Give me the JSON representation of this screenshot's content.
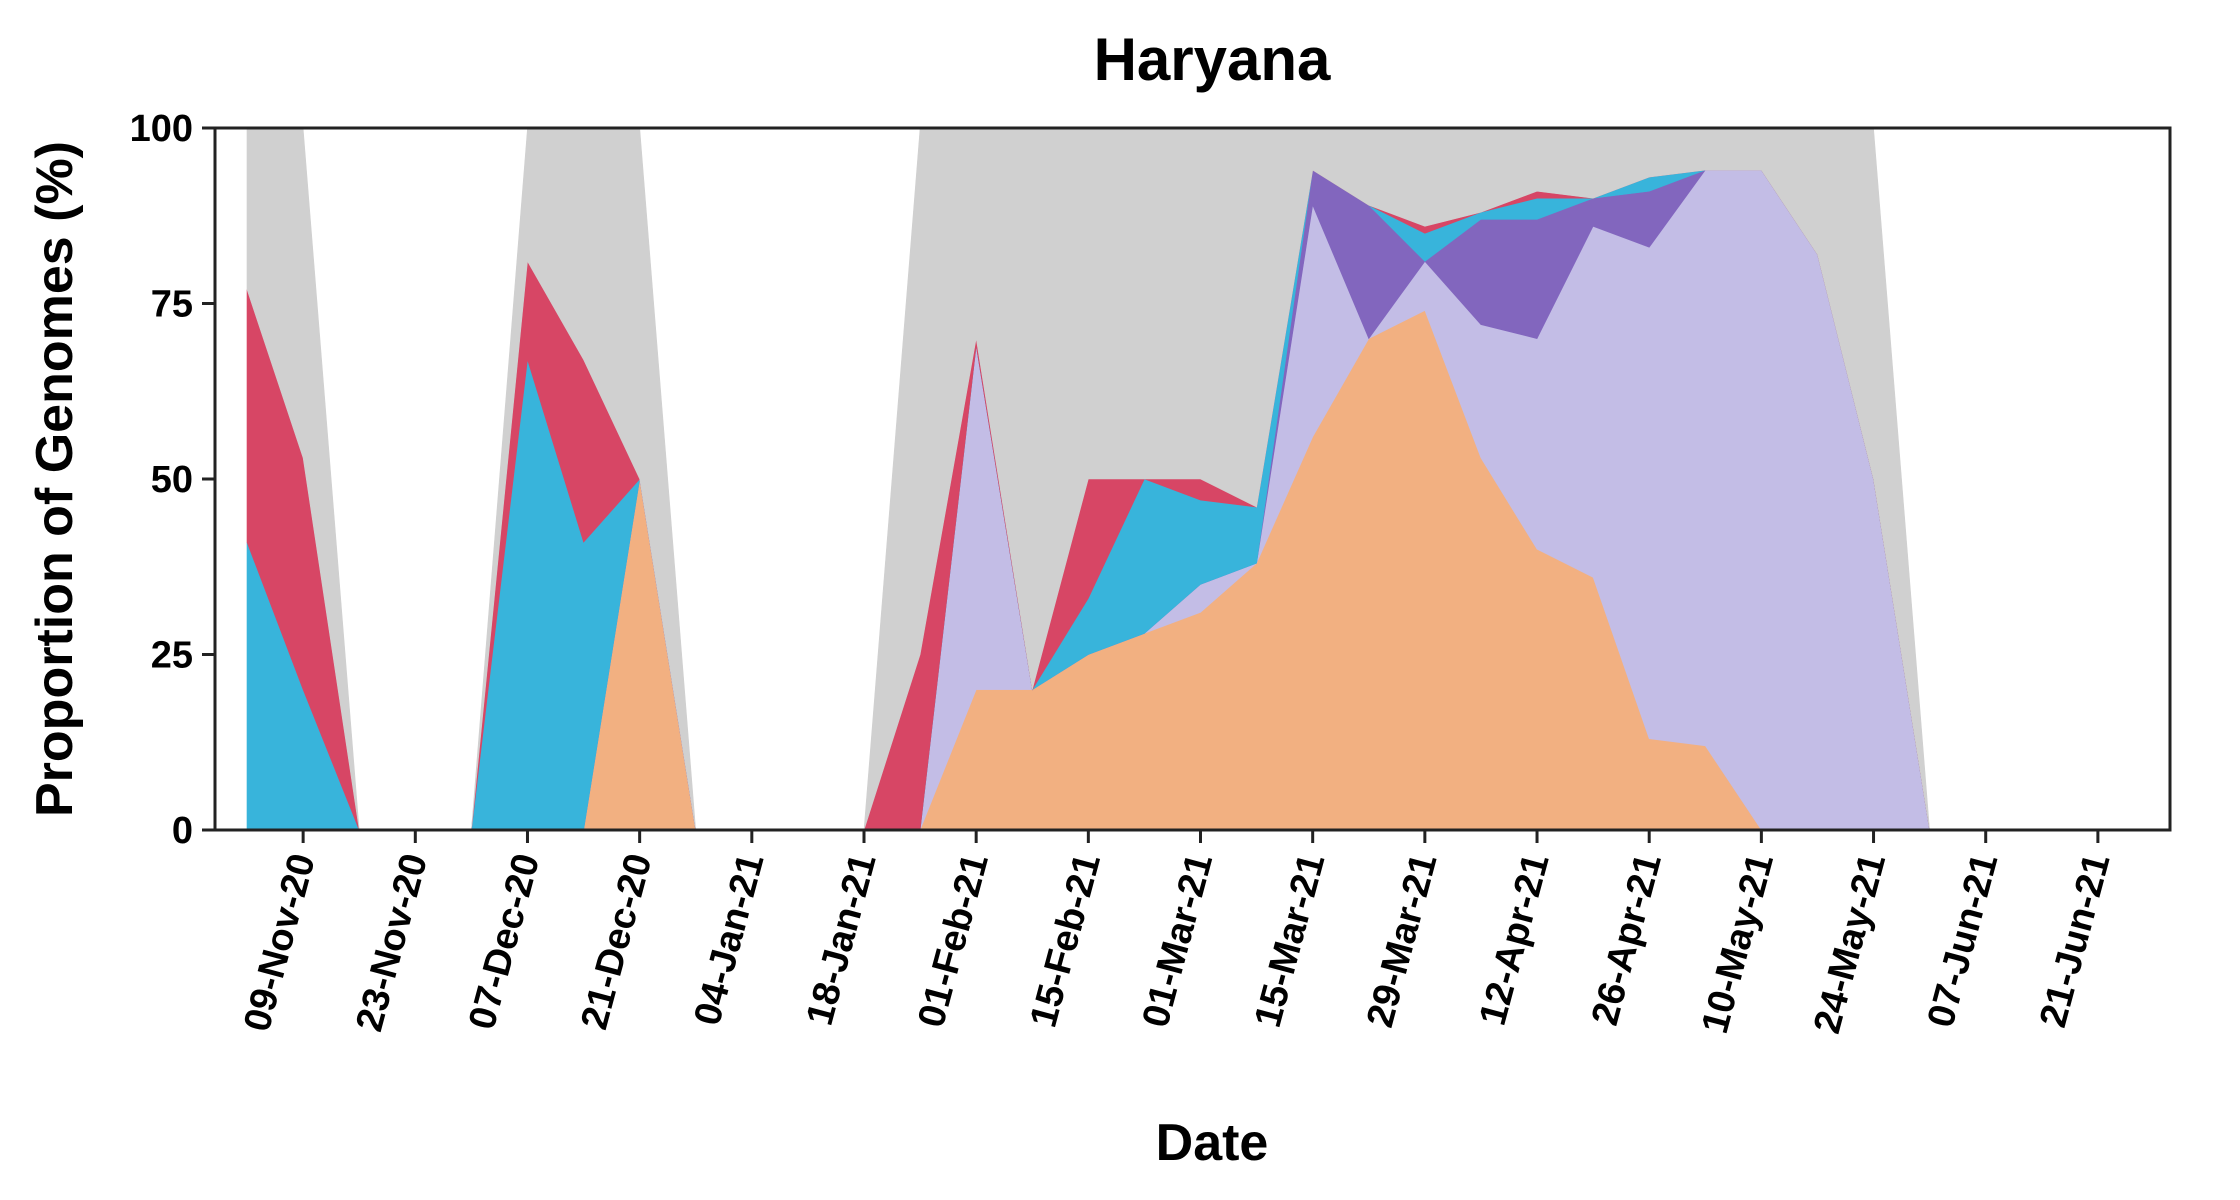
{
  "chart_data": {
    "type": "area",
    "stacked": true,
    "title": "Haryana",
    "xlabel": "Date",
    "ylabel": "Proportion of Genomes (%)",
    "ylim": [
      0,
      100
    ],
    "xlim": [
      "2020-10-29",
      "2021-06-30"
    ],
    "yticks": [
      0,
      25,
      50,
      75,
      100
    ],
    "xticks": [
      "2020-11-09",
      "2020-11-23",
      "2020-12-07",
      "2020-12-21",
      "2021-01-04",
      "2021-01-18",
      "2021-02-01",
      "2021-02-15",
      "2021-03-01",
      "2021-03-15",
      "2021-03-29",
      "2021-04-12",
      "2021-04-26",
      "2021-05-10",
      "2021-05-24",
      "2021-06-07",
      "2021-06-21"
    ],
    "xtick_labels": [
      "09-Nov-20",
      "23-Nov-20",
      "07-Dec-20",
      "21-Dec-20",
      "04-Jan-21",
      "18-Jan-21",
      "01-Feb-21",
      "15-Feb-21",
      "01-Mar-21",
      "15-Mar-21",
      "29-Mar-21",
      "12-Apr-21",
      "26-Apr-21",
      "10-May-21",
      "24-May-21",
      "07-Jun-21",
      "21-Jun-21"
    ],
    "grid": false,
    "legend": "none",
    "series_colors": [
      "#f2b081",
      "#c3bde6",
      "#8266be",
      "#38b4db",
      "#d74665",
      "#d0d0d0"
    ],
    "segments": [
      {
        "x": [
          "2020-11-02",
          "2020-11-09",
          "2020-11-16"
        ],
        "series": [
          {
            "values": [
              0,
              0,
              0
            ]
          },
          {
            "values": [
              0,
              0,
              0
            ]
          },
          {
            "values": [
              0,
              0,
              0
            ]
          },
          {
            "values": [
              41,
              20,
              0
            ]
          },
          {
            "values": [
              36,
              33,
              0
            ]
          },
          {
            "values": [
              23,
              47,
              0
            ]
          }
        ]
      },
      {
        "x": [
          "2020-11-30",
          "2020-12-07",
          "2020-12-14",
          "2020-12-21",
          "2020-12-28"
        ],
        "series": [
          {
            "values": [
              0,
              0,
              0,
              50,
              0
            ]
          },
          {
            "values": [
              0,
              0,
              0,
              0,
              0
            ]
          },
          {
            "values": [
              0,
              0,
              0,
              0,
              0
            ]
          },
          {
            "values": [
              0,
              67,
              41,
              0,
              0
            ]
          },
          {
            "values": [
              0,
              14,
              26,
              0,
              0
            ]
          },
          {
            "values": [
              0,
              19,
              33,
              50,
              0
            ]
          }
        ]
      },
      {
        "x": [
          "2021-01-18",
          "2021-01-25",
          "2021-02-01",
          "2021-02-08",
          "2021-02-15",
          "2021-02-22",
          "2021-03-01",
          "2021-03-08",
          "2021-03-15",
          "2021-03-22",
          "2021-03-29",
          "2021-04-05",
          "2021-04-12",
          "2021-04-19",
          "2021-04-26",
          "2021-05-03",
          "2021-05-10",
          "2021-05-17",
          "2021-05-24",
          "2021-05-31"
        ],
        "series": [
          {
            "values": [
              0,
              0,
              20,
              20,
              25,
              28,
              31,
              38,
              56,
              70,
              74,
              53,
              40,
              36,
              13,
              12,
              0,
              0,
              0,
              0
            ]
          },
          {
            "values": [
              0,
              0,
              49,
              0,
              0,
              0,
              4,
              0,
              33,
              0,
              7,
              19,
              30,
              50,
              70,
              82,
              94,
              82,
              50,
              0
            ]
          },
          {
            "values": [
              0,
              0,
              0,
              0,
              0,
              0,
              0,
              0,
              5,
              19,
              0,
              15,
              17,
              4,
              8,
              0,
              0,
              0,
              0,
              0
            ]
          },
          {
            "values": [
              0,
              0,
              0,
              0,
              8,
              22,
              12,
              8,
              0,
              0,
              4,
              1,
              3,
              0,
              2,
              0,
              0,
              0,
              0,
              0
            ]
          },
          {
            "values": [
              0,
              25,
              1,
              0,
              17,
              0,
              3,
              0,
              0,
              0,
              1,
              0,
              1,
              0,
              0,
              0,
              0,
              0,
              0,
              0
            ]
          },
          {
            "values": [
              0,
              75,
              30,
              80,
              50,
              50,
              50,
              54,
              6,
              11,
              14,
              12,
              9,
              10,
              7,
              6,
              6,
              18,
              50,
              0
            ]
          }
        ]
      }
    ]
  }
}
